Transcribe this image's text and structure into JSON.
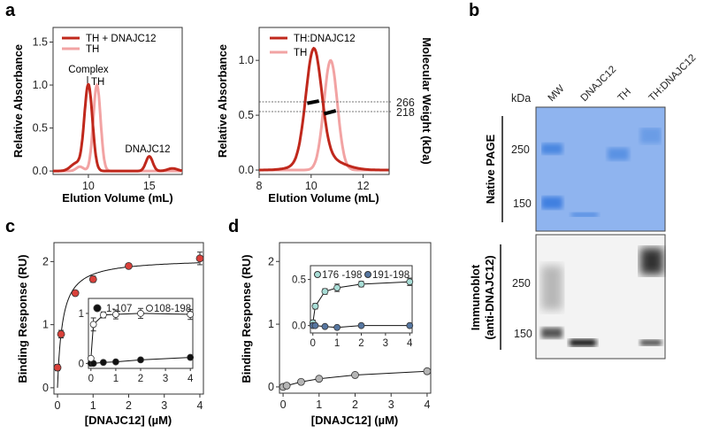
{
  "panel_labels": {
    "a": "a",
    "b": "b",
    "c": "c",
    "d": "d"
  },
  "chart_data": [
    {
      "id": "a-left",
      "type": "line",
      "xlabel": "Elution Volume (mL)",
      "ylabel": "Relative Absorbance",
      "xlim": [
        7.1,
        17.7
      ],
      "ylim": [
        -0.04,
        1.67
      ],
      "xticks": [
        10,
        15
      ],
      "yticks": [
        "0.0",
        "0.5",
        "1.0",
        "1.5"
      ],
      "series": [
        {
          "name": "TH + DNAJC12",
          "color": "#c0281c",
          "peaks": [
            [
              10.0,
              1.0,
              0.33
            ],
            [
              9.0,
              0.09,
              0.45
            ],
            [
              15.0,
              0.17,
              0.28
            ],
            [
              16.9,
              0.03,
              0.4
            ]
          ]
        },
        {
          "name": "TH",
          "color": "#f2a3a3",
          "peaks": [
            [
              10.7,
              1.0,
              0.3
            ],
            [
              9.3,
              0.05,
              0.3
            ]
          ]
        }
      ],
      "annotations": [
        "Complex",
        "TH",
        "DNAJC12"
      ]
    },
    {
      "id": "a-right",
      "type": "line",
      "xlabel": "Elution Volume (mL)",
      "ylabel": "Relative Absorbance",
      "y2label": "Molecular Weight (kDa)",
      "xlim": [
        8,
        13
      ],
      "ylim": [
        -0.04,
        1.3
      ],
      "xticks": [
        8,
        10,
        12
      ],
      "yticks": [
        "0.0",
        "0.5",
        "1.0"
      ],
      "series": [
        {
          "name": "TH:DNAJC12",
          "color": "#c0281c",
          "peaks": [
            [
              10.1,
              1.0,
              0.3
            ],
            [
              10.4,
              0.12,
              0.7
            ]
          ]
        },
        {
          "name": "TH",
          "color": "#f2a3a3",
          "peaks": [
            [
              10.75,
              1.0,
              0.26
            ]
          ]
        }
      ],
      "mw_reference": [
        "266",
        "218"
      ],
      "mw_segments": [
        {
          "x": [
            9.85,
            10.3
          ],
          "mw": [
            259,
            270
          ]
        },
        {
          "x": [
            10.5,
            10.95
          ],
          "mw": [
            207,
            222
          ]
        }
      ]
    },
    {
      "id": "c",
      "type": "scatter",
      "xlabel": "[DNAJC12] (µM)",
      "ylabel": "Binding Response (RU)",
      "xlim": [
        -0.1,
        4.1
      ],
      "ylim": [
        -0.1,
        2.3
      ],
      "xticks": [
        "0",
        "1",
        "2",
        "3",
        "4"
      ],
      "yticks": [
        "0",
        "1",
        "2"
      ],
      "series": [
        {
          "name": "DNAJC12",
          "color": "#d9403a",
          "x": [
            0,
            0.1,
            0.5,
            1,
            2,
            4
          ],
          "y": [
            0.32,
            0.85,
            1.5,
            1.72,
            1.93,
            2.05
          ],
          "err": [
            0.05,
            0.06,
            0.03,
            0.05,
            0.02,
            0.1
          ],
          "fit": {
            "bmax": 2.05,
            "kd": 0.14
          }
        }
      ],
      "inset": {
        "xticks": [
          "0",
          "1",
          "2",
          "3",
          "4"
        ],
        "yticks": [
          "0",
          "1"
        ],
        "ylim": [
          -0.1,
          1.3
        ],
        "series": [
          {
            "name": "1-107",
            "color": "#111111",
            "x": [
              0,
              0.1,
              0.5,
              1,
              2,
              4
            ],
            "y": [
              0,
              0,
              0.02,
              0.03,
              0.07,
              0.12
            ],
            "err": [
              0,
              0,
              0,
              0,
              0,
              0
            ]
          },
          {
            "name": "108-198",
            "color": "#ffffff",
            "x": [
              0,
              0.1,
              0.5,
              1,
              2,
              4
            ],
            "y": [
              0.1,
              0.78,
              0.97,
              0.98,
              1.0,
              0.98
            ],
            "err": [
              0.03,
              0.13,
              0.06,
              0.09,
              0.1,
              0.1
            ]
          }
        ]
      }
    },
    {
      "id": "d",
      "type": "scatter",
      "xlabel": "[DNAJC12] (µM)",
      "ylabel": "Binding Response (RU)",
      "xlim": [
        -0.1,
        4.1
      ],
      "ylim": [
        -0.1,
        2.3
      ],
      "xticks": [
        "0",
        "1",
        "2",
        "3",
        "4"
      ],
      "yticks": [
        "0",
        "1",
        "2"
      ],
      "series": [
        {
          "name": "DNAJC12",
          "color": "#b5b5b5",
          "x": [
            0,
            0.1,
            0.5,
            1,
            2,
            4
          ],
          "y": [
            0,
            0.02,
            0.08,
            0.13,
            0.19,
            0.25
          ],
          "err": [
            0,
            0,
            0,
            0,
            0,
            0
          ]
        }
      ],
      "inset": {
        "xticks": [
          "0",
          "1",
          "2",
          "3",
          "4"
        ],
        "yticks": [
          "0.0",
          "0.5"
        ],
        "ylim": [
          -0.08,
          0.65
        ],
        "series": [
          {
            "name": "176 -198",
            "color": "#a8ddd6",
            "x": [
              0,
              0.1,
              0.5,
              1,
              2,
              4
            ],
            "y": [
              0.03,
              0.21,
              0.37,
              0.41,
              0.45,
              0.475
            ],
            "err": [
              0.03,
              0.03,
              0.03,
              0.04,
              0.03,
              0.04
            ]
          },
          {
            "name": "191-198",
            "color": "#5676a0",
            "x": [
              0,
              0.1,
              0.5,
              1,
              2,
              4
            ],
            "y": [
              0,
              0,
              -0.01,
              -0.02,
              0,
              0
            ],
            "err": [
              0,
              0,
              0,
              0,
              0,
              0
            ]
          }
        ]
      }
    }
  ],
  "gel": {
    "kda_label": "kDa",
    "lanes": [
      "MW",
      "DNAJC12",
      "TH",
      "TH:DNAJC12"
    ],
    "native_label": "Native PAGE",
    "immuno_label_1": "Immunoblot",
    "immuno_label_2": "(anti-DNAJC12)",
    "native_markers": [
      "250",
      "150"
    ],
    "immuno_markers": [
      "250",
      "150"
    ],
    "gel_color": "#8fb4ef",
    "band_color": "#3f7fe0"
  }
}
